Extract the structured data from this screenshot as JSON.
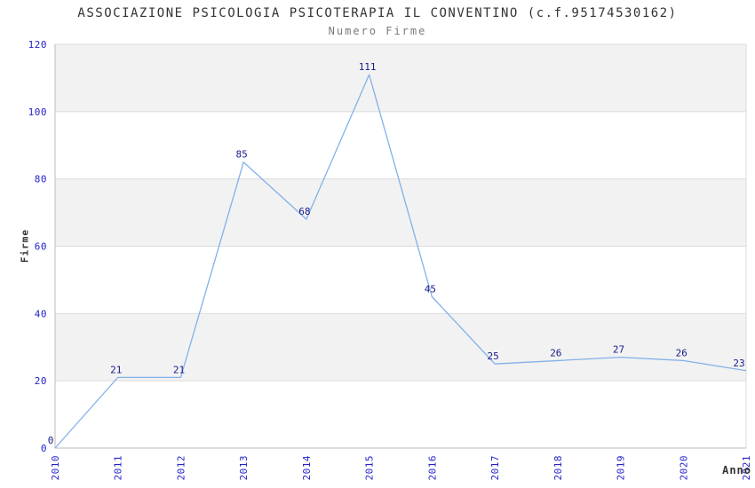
{
  "chart_data": {
    "type": "line",
    "title": "ASSOCIAZIONE PSICOLOGIA PSICOTERAPIA IL CONVENTINO (c.f.95174530162)",
    "subtitle": "Numero Firme",
    "xlabel": "Anno",
    "ylabel": "Firme",
    "categories": [
      "2010",
      "2011",
      "2012",
      "2013",
      "2014",
      "2015",
      "2016",
      "2017",
      "2018",
      "2019",
      "2020",
      "2021"
    ],
    "values": [
      0,
      21,
      21,
      85,
      68,
      111,
      45,
      25,
      26,
      27,
      26,
      23
    ],
    "ylim": [
      0,
      120
    ],
    "yticks": [
      0,
      20,
      40,
      60,
      80,
      100,
      120
    ],
    "grid": "horizontal-alternating-bands",
    "legend_position": "none",
    "x_tick_rotation_deg": -90,
    "colors": {
      "line": "#82b1e8",
      "tick_label": "#2323cc",
      "data_label": "#1a1a8c",
      "band_shaded": "#f2f2f2",
      "band_plain": "#ffffff",
      "grid_line": "#dcdcdc",
      "axis_line": "#bbbbbb",
      "title": "#333333",
      "subtitle": "#7a7a7a",
      "axis_title": "#333333",
      "background": "#ffffff"
    }
  }
}
